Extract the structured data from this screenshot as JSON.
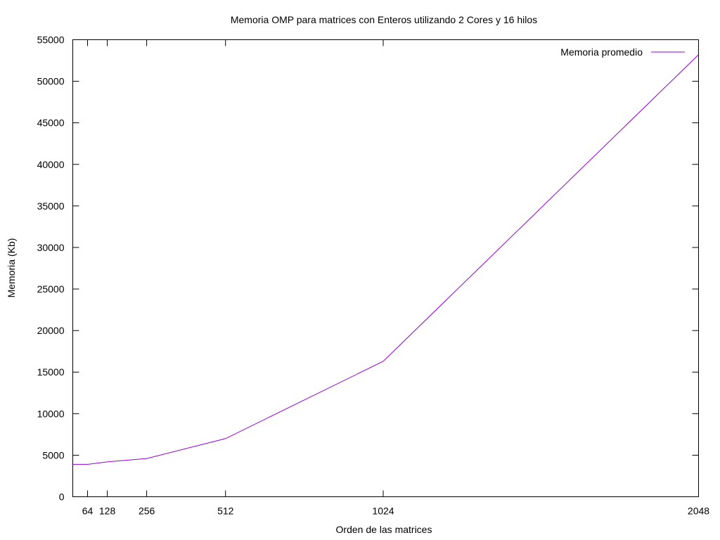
{
  "chart_data": {
    "type": "line",
    "title": "Memoria OMP para matrices con Enteros utilizando 2 Cores y 16 hilos",
    "xlabel": "Orden de las matrices",
    "ylabel": "Memoria (Kb)",
    "xlim": [
      16,
      2048
    ],
    "ylim": [
      0,
      55000
    ],
    "xticks": [
      64,
      128,
      256,
      512,
      1024,
      2048
    ],
    "yticks": [
      0,
      5000,
      10000,
      15000,
      20000,
      25000,
      30000,
      35000,
      40000,
      45000,
      50000,
      55000
    ],
    "grid": false,
    "legend_position": "top-right",
    "series": [
      {
        "name": "Memoria promedio",
        "color": "#9400d3",
        "x": [
          16,
          64,
          128,
          256,
          512,
          1024,
          2048
        ],
        "y": [
          3900,
          3900,
          4200,
          4600,
          7000,
          16300,
          53200
        ]
      }
    ]
  }
}
